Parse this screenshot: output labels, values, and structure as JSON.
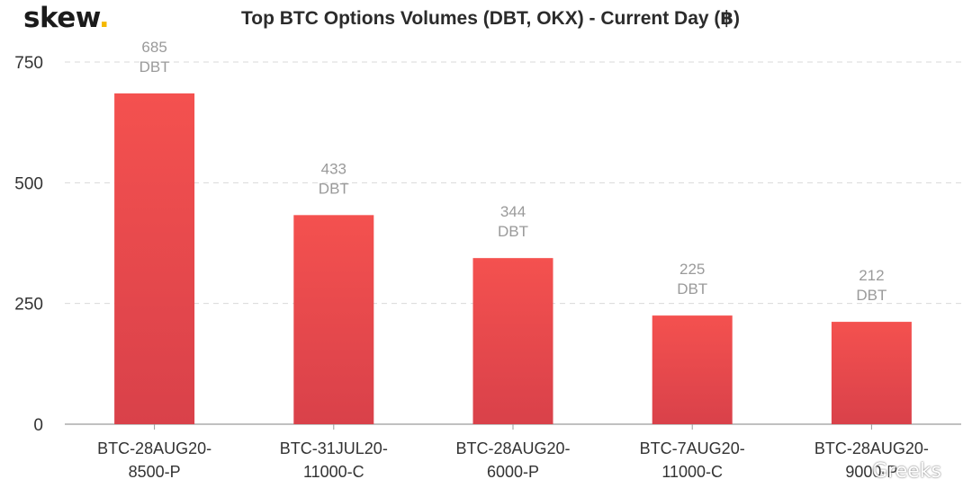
{
  "brand": {
    "name": "skew",
    "dot": "."
  },
  "chart_data": {
    "type": "bar",
    "title": "Top BTC Options Volumes (DBT, OKX) - Current Day (฿)",
    "xlabel": "",
    "ylabel": "",
    "ylim": [
      0,
      750
    ],
    "yticks": [
      0,
      250,
      500,
      750
    ],
    "grid": true,
    "categories": [
      [
        "BTC-28AUG20-",
        "8500-P"
      ],
      [
        "BTC-31JUL20-",
        "11000-C"
      ],
      [
        "BTC-28AUG20-",
        "6000-P"
      ],
      [
        "BTC-7AUG20-",
        "11000-C"
      ],
      [
        "BTC-28AUG20-",
        "9000-P"
      ]
    ],
    "values": [
      685,
      433,
      344,
      225,
      212
    ],
    "bar_labels": [
      "DBT",
      "DBT",
      "DBT",
      "DBT",
      "DBT"
    ],
    "bar_color": "#ee4b4f"
  },
  "watermark": "Greeks"
}
